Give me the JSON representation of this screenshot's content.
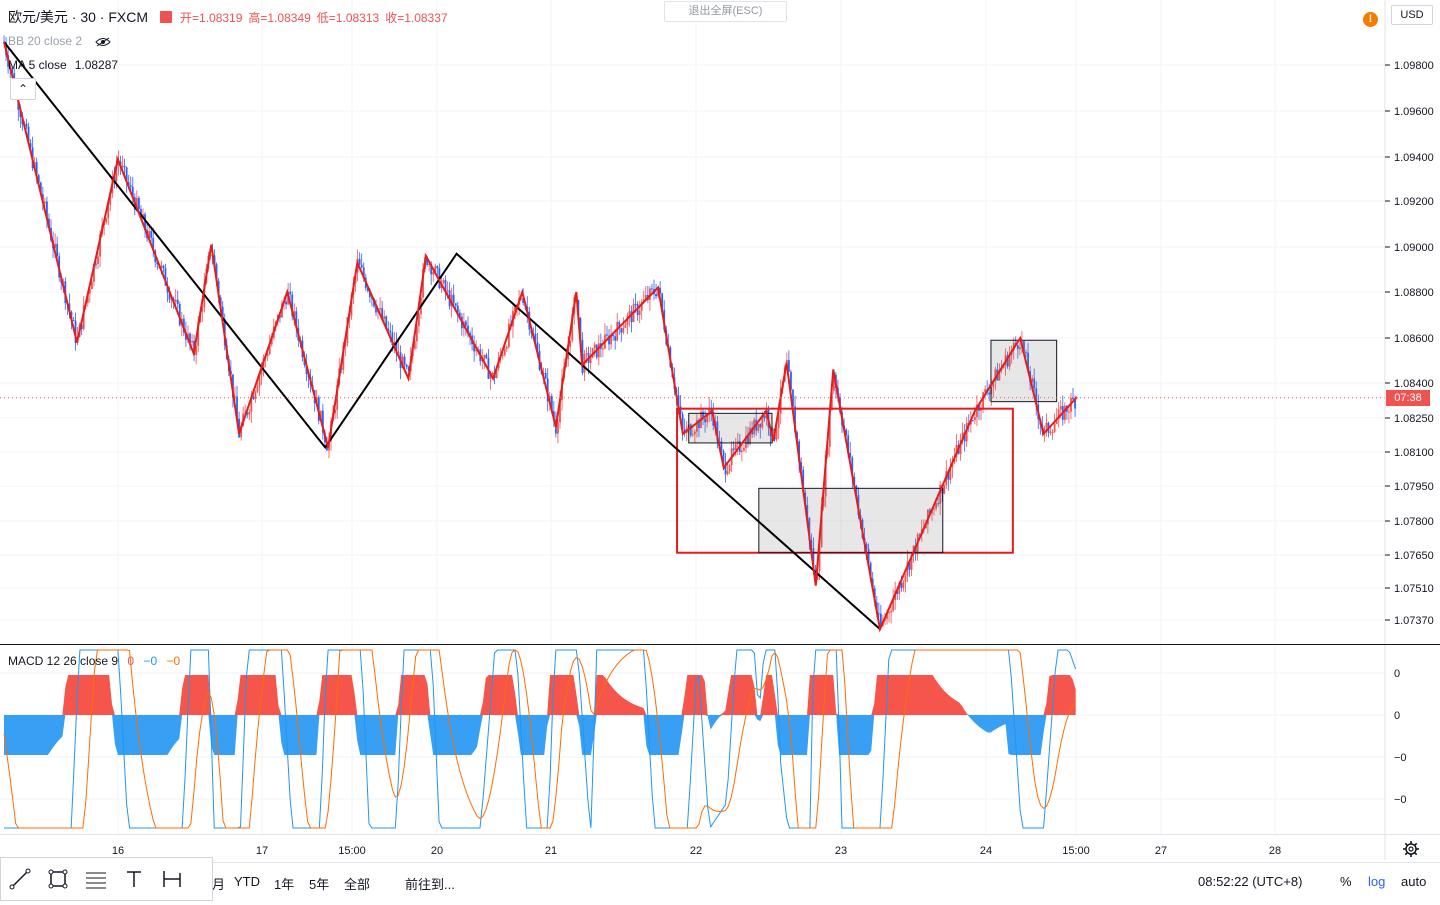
{
  "header": {
    "symbol": "欧元/美元 · 30 · FXCM",
    "open": "开=1.08319",
    "high": "高=1.08349",
    "low": "低=1.08313",
    "close": "收=1.08337"
  },
  "indicators": {
    "bb": "BB 20 close 2",
    "ma": "MA 5 close",
    "ma_value": "1.08287",
    "macd": "MACD 12 26 close 9",
    "macd_v1": "0",
    "macd_v2": "−0",
    "macd_v3": "−0"
  },
  "exit_fullscreen": "退出全屏(ESC)",
  "currency": "USD",
  "notification": "!",
  "price_tag": "07:38",
  "colors": {
    "up": "#ef5350",
    "down": "#2962ff",
    "macd_pos": "#f44336",
    "macd_neg": "#2196f3",
    "signal": "#ff6d00",
    "macd_line": "#2196f3",
    "accent_red": "#e31d1d"
  },
  "bottom_bar": {
    "ranges": [
      "月",
      "YTD",
      "1年",
      "5年",
      "全部"
    ],
    "goto": "前往到...",
    "clock": "08:52:22 (UTC+8)",
    "percent": "%",
    "log": "log",
    "auto": "auto"
  },
  "toolbar_icons": [
    "trend-line-icon",
    "rectangle-icon",
    "fib-icon",
    "text-icon",
    "measure-icon"
  ],
  "chart_data": {
    "type": "candlestick",
    "symbol": "EUR/USD",
    "timeframe": "30",
    "y_ticks": [
      "1.09800",
      "1.09600",
      "1.09400",
      "1.09200",
      "1.09000",
      "1.08800",
      "1.08600",
      "1.08400",
      "1.08250",
      "1.08100",
      "1.07950",
      "1.07800",
      "1.07650",
      "1.07510",
      "1.07370"
    ],
    "x_ticks": [
      "16",
      "17",
      "15:00",
      "20",
      "21",
      "22",
      "23",
      "24",
      "15:00",
      "27",
      "28"
    ],
    "macd_ticks": [
      "0",
      "0",
      "−0",
      "−0"
    ],
    "zigzag_black": [
      [
        0,
        1.099
      ],
      [
        22,
        1.0812
      ],
      [
        31,
        1.0897
      ],
      [
        60,
        1.0733
      ]
    ],
    "zigzag_red": [
      [
        0,
        1.099
      ],
      [
        5,
        1.0858
      ],
      [
        7.8,
        1.0939
      ],
      [
        13,
        1.0853
      ],
      [
        14.2,
        1.0901
      ],
      [
        16.1,
        1.0818
      ],
      [
        19.4,
        1.088
      ],
      [
        22.2,
        1.0812
      ],
      [
        24.2,
        1.0893
      ],
      [
        27.7,
        1.0842
      ],
      [
        28.9,
        1.0896
      ],
      [
        33.5,
        1.0842
      ],
      [
        35.5,
        1.088
      ],
      [
        37.8,
        1.0821
      ],
      [
        39.2,
        1.088
      ],
      [
        39.6,
        1.0848
      ],
      [
        44.8,
        1.0882
      ],
      [
        46.5,
        1.0818
      ],
      [
        48.5,
        1.0828
      ],
      [
        49.3,
        1.0803
      ],
      [
        52.2,
        1.0828
      ],
      [
        52.7,
        1.0815
      ],
      [
        53.6,
        1.0849
      ],
      [
        55.6,
        1.0752
      ],
      [
        56.8,
        1.0846
      ],
      [
        60,
        1.0733
      ],
      [
        66.5,
        1.0828
      ],
      [
        69.6,
        1.086
      ],
      [
        71.2,
        1.0818
      ],
      [
        73.5,
        1.0834
      ]
    ],
    "boxes": [
      {
        "kind": "red",
        "from": [
          46.1,
          1.0829
        ],
        "to": [
          69.1,
          1.0766
        ]
      },
      {
        "kind": "gray",
        "from": [
          46.9,
          1.0827
        ],
        "to": [
          52.6,
          1.0814
        ]
      },
      {
        "kind": "gray",
        "from": [
          51.7,
          1.0794
        ],
        "to": [
          64.3,
          1.0766
        ]
      },
      {
        "kind": "gray",
        "from": [
          67.6,
          1.0859
        ],
        "to": [
          72.1,
          1.0832
        ]
      }
    ],
    "last_price": 1.08337
  }
}
